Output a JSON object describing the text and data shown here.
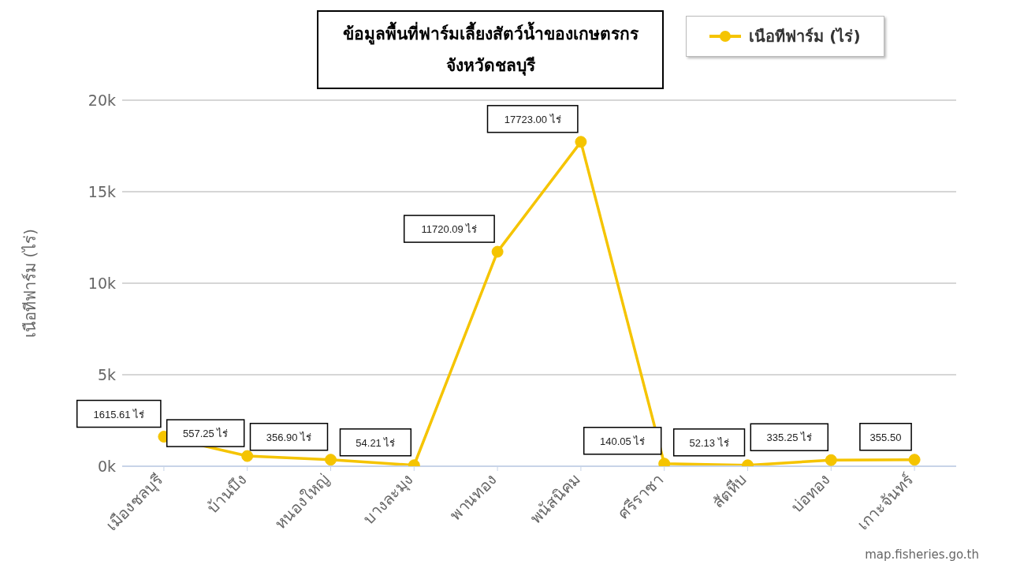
{
  "chart_data": {
    "type": "line",
    "title": "ข้อมูลพื้นที่ฟาร์มเลี้ยงสัตว์น้ำของเกษตรกร จังหวัดชลบุรี",
    "ylabel": "เนือทีฟาร์ม (ไร่)",
    "categories": [
      "เมืองชลบุรี",
      "บ้านบึง",
      "หนองใหญ่",
      "บางละมุง",
      "พานทอง",
      "พนัสนิคม",
      "ศรีราชา",
      "สัตหีบ",
      "บ่อทอง",
      "เกาะจันทร์"
    ],
    "series": [
      {
        "name": "เนือทีฟาร์ม (ไร่)",
        "color": "#f5c400",
        "values": [
          1615.61,
          557.25,
          356.9,
          54.21,
          11720.09,
          17723.0,
          140.05,
          52.13,
          335.25,
          355.5
        ],
        "value_labels": [
          "1615.61 ไร่",
          "557.25 ไร่",
          "356.90 ไร่",
          "54.21 ไร่",
          "11720.09 ไร่",
          "17723.00 ไร่",
          "140.05 ไร่",
          "52.13 ไร่",
          "335.25 ไร่",
          "355.50"
        ]
      }
    ],
    "ylim": [
      0,
      20000
    ],
    "yticks": [
      {
        "value": 0,
        "label": "0k"
      },
      {
        "value": 5000,
        "label": "5k"
      },
      {
        "value": 10000,
        "label": "10k"
      },
      {
        "value": 15000,
        "label": "15k"
      },
      {
        "value": 20000,
        "label": "20k"
      }
    ],
    "grid": "y",
    "legend": "top right",
    "marker": "circle",
    "line_style": "solid",
    "annotations": [
      "map.fisheries.go.th"
    ]
  }
}
